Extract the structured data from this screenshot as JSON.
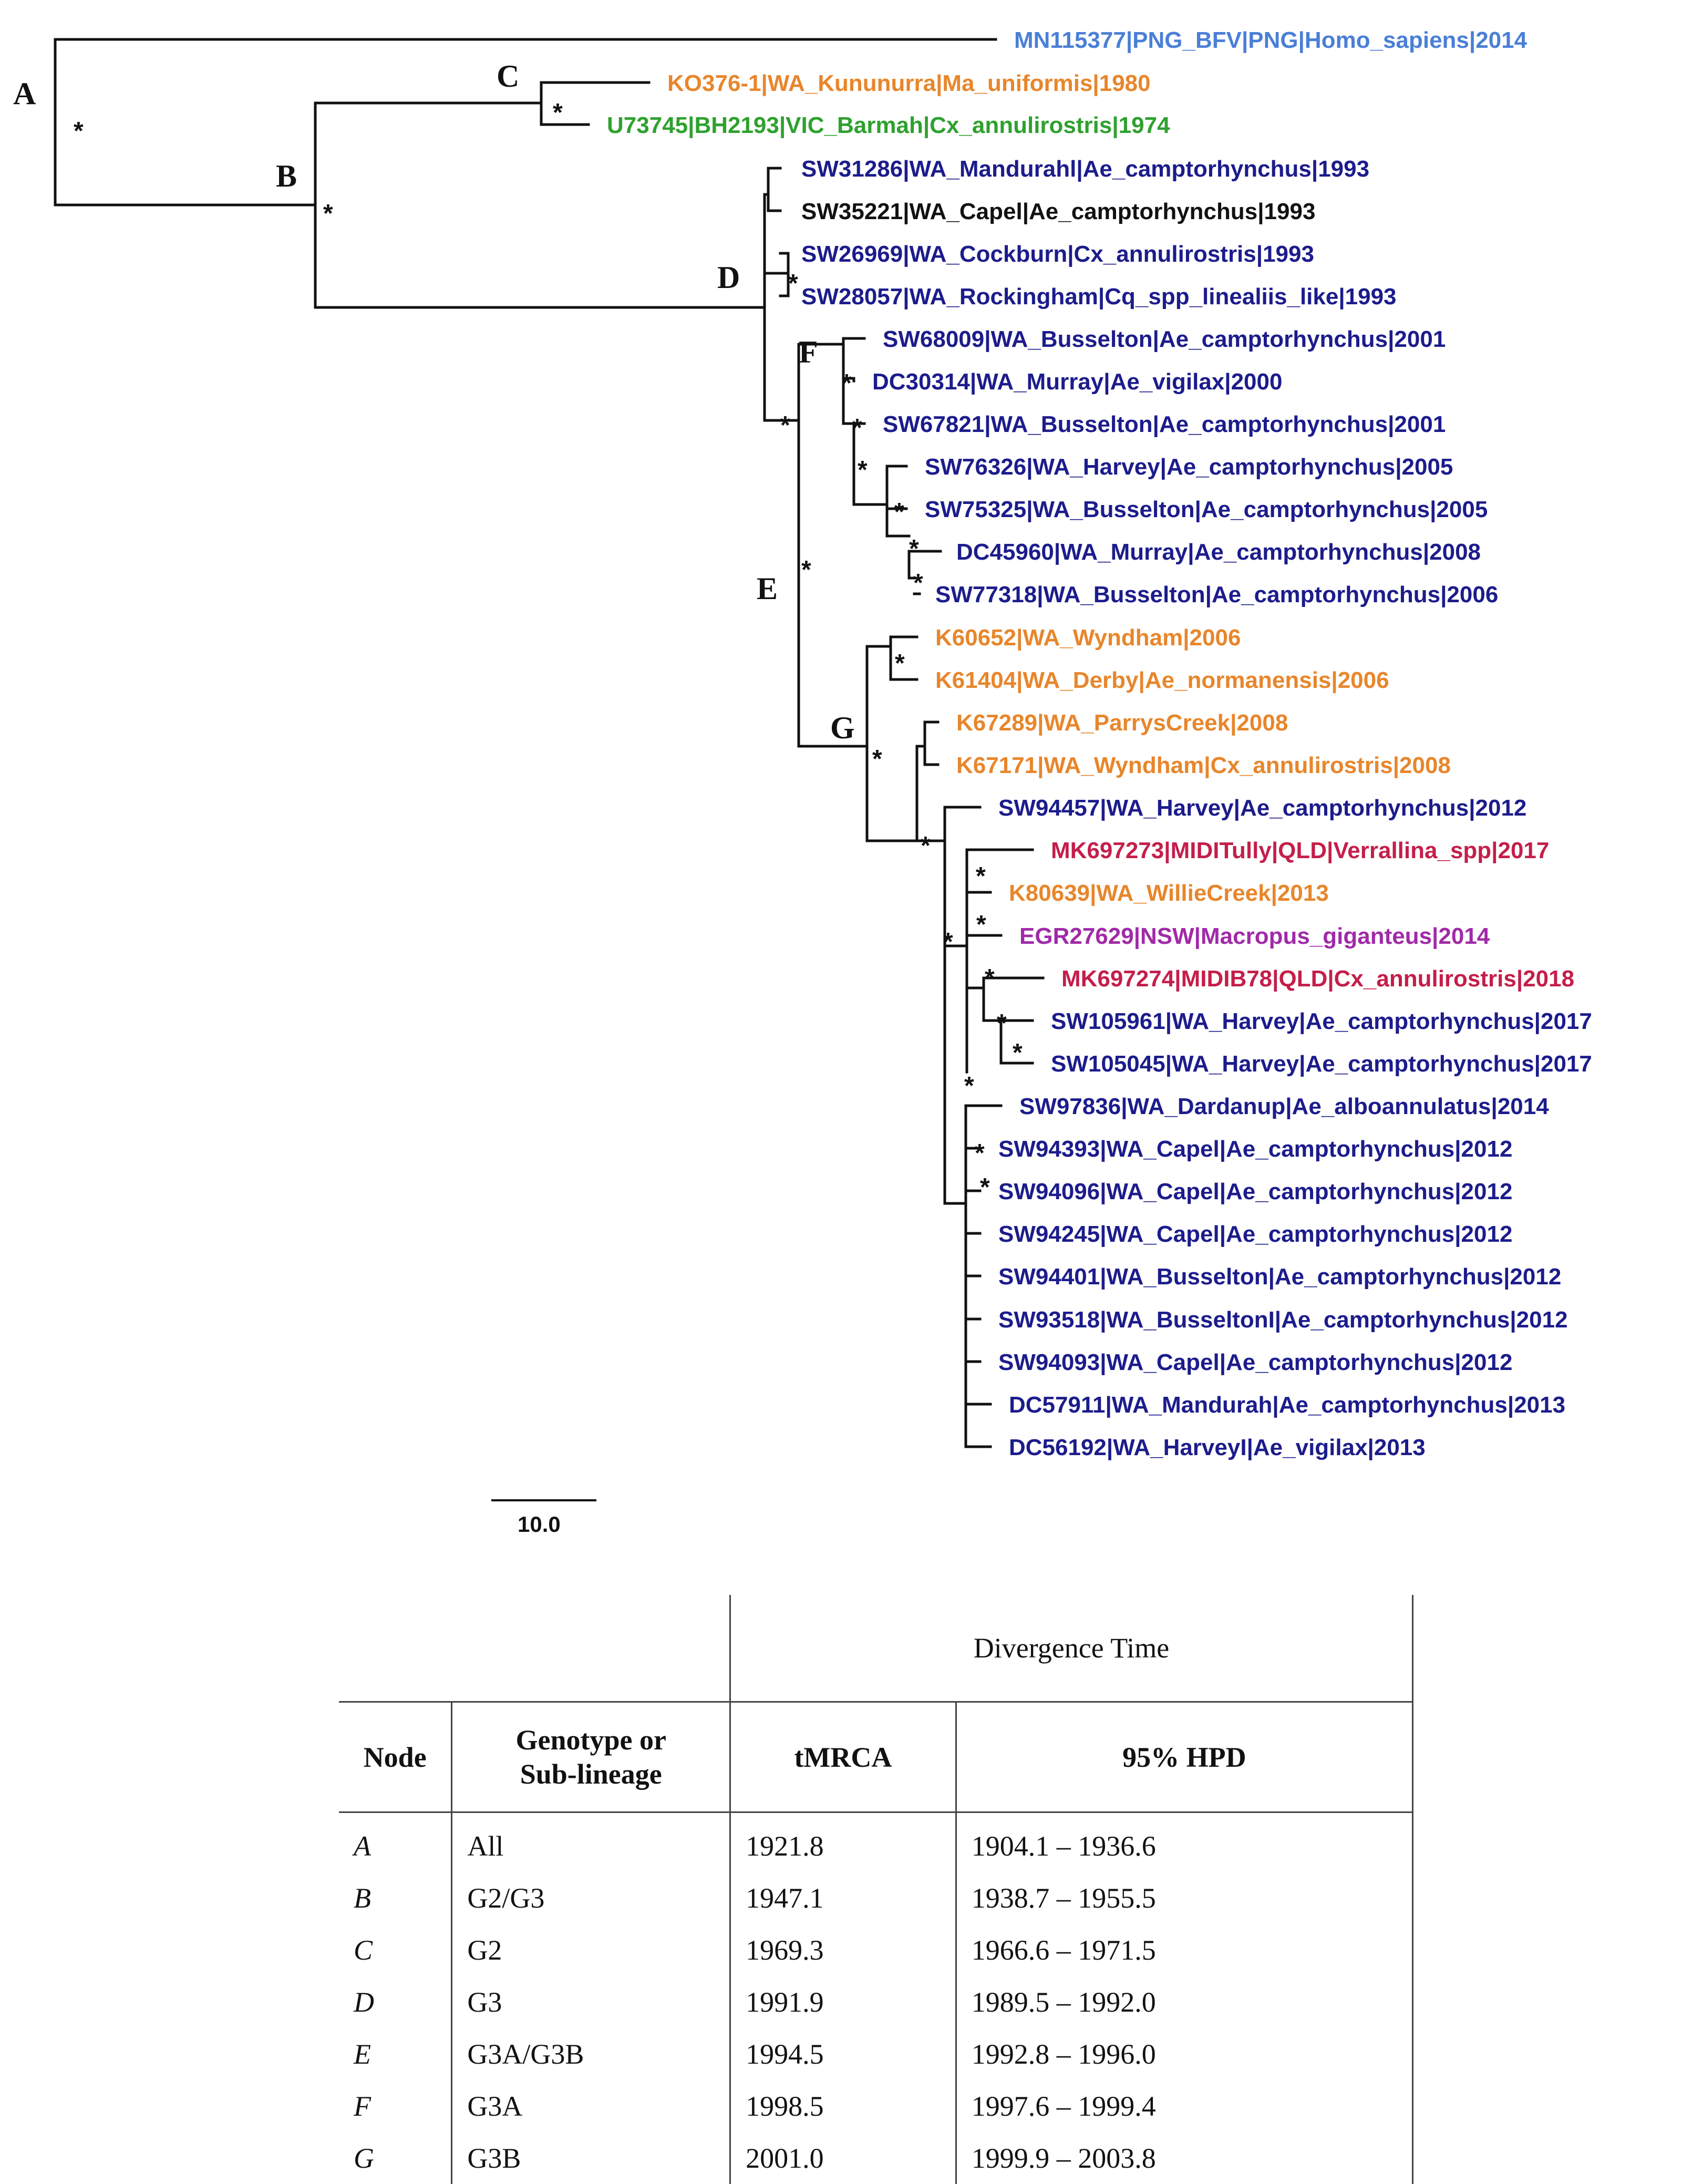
{
  "tree": {
    "leaves": [
      {
        "text": "MN115377|PNG_BFV|PNG|Homo_sapiens|2014",
        "color": "#4a7fd6"
      },
      {
        "text": "KO376-1|WA_Kununurra|Ma_uniformis|1980",
        "color": "#e8862b"
      },
      {
        "text": "U73745|BH2193|VIC_Barmah|Cx_annulirostris|1974",
        "color": "#2ea12e"
      },
      {
        "text": "SW31286|WA_Mandurahl|Ae_camptorhynchus|1993",
        "color": "#1c1c8c"
      },
      {
        "text": "SW35221|WA_Capel|Ae_camptorhynchus|1993",
        "color": "#111111"
      },
      {
        "text": "SW26969|WA_Cockburn|Cx_annulirostris|1993",
        "color": "#1c1c8c"
      },
      {
        "text": "SW28057|WA_Rockingham|Cq_spp_linealiis_like|1993",
        "color": "#1c1c8c"
      },
      {
        "text": "SW68009|WA_Busselton|Ae_camptorhynchus|2001",
        "color": "#1c1c8c"
      },
      {
        "text": "DC30314|WA_Murray|Ae_vigilax|2000",
        "color": "#1c1c8c"
      },
      {
        "text": "SW67821|WA_Busselton|Ae_camptorhynchus|2001",
        "color": "#1c1c8c"
      },
      {
        "text": "SW76326|WA_Harvey|Ae_camptorhynchus|2005",
        "color": "#1c1c8c"
      },
      {
        "text": "SW75325|WA_Busselton|Ae_camptorhynchus|2005",
        "color": "#1c1c8c"
      },
      {
        "text": "DC45960|WA_Murray|Ae_camptorhynchus|2008",
        "color": "#1c1c8c"
      },
      {
        "text": "SW77318|WA_Busselton|Ae_camptorhynchus|2006",
        "color": "#1c1c8c"
      },
      {
        "text": "K60652|WA_Wyndham|2006",
        "color": "#e8862b"
      },
      {
        "text": "K61404|WA_Derby|Ae_normanensis|2006",
        "color": "#e8862b"
      },
      {
        "text": "K67289|WA_ParrysCreek|2008",
        "color": "#e8862b"
      },
      {
        "text": "K67171|WA_Wyndham|Cx_annulirostris|2008",
        "color": "#e8862b"
      },
      {
        "text": "SW94457|WA_Harvey|Ae_camptorhynchus|2012",
        "color": "#1c1c8c"
      },
      {
        "text": "MK697273|MIDITully|QLD|Verrallina_spp|2017",
        "color": "#c41e4a"
      },
      {
        "text": "K80639|WA_WillieCreek|2013",
        "color": "#e8862b"
      },
      {
        "text": "EGR27629|NSW|Macropus_giganteus|2014",
        "color": "#a02aa8"
      },
      {
        "text": "MK697274|MIDIB78|QLD|Cx_annulirostris|2018",
        "color": "#c41e4a"
      },
      {
        "text": "SW105961|WA_Harvey|Ae_camptorhynchus|2017",
        "color": "#1c1c8c"
      },
      {
        "text": "SW105045|WA_Harvey|Ae_camptorhynchus|2017",
        "color": "#1c1c8c"
      },
      {
        "text": "SW97836|WA_Dardanup|Ae_alboannulatus|2014",
        "color": "#1c1c8c"
      },
      {
        "text": "SW94393|WA_Capel|Ae_camptorhynchus|2012",
        "color": "#1c1c8c"
      },
      {
        "text": "SW94096|WA_Capel|Ae_camptorhynchus|2012",
        "color": "#1c1c8c"
      },
      {
        "text": "SW94245|WA_Capel|Ae_camptorhynchus|2012",
        "color": "#1c1c8c"
      },
      {
        "text": "SW94401|WA_Busselton|Ae_camptorhynchus|2012",
        "color": "#1c1c8c"
      },
      {
        "text": "SW93518|WA_BusseltonI|Ae_camptorhynchus|2012",
        "color": "#1c1c8c"
      },
      {
        "text": "SW94093|WA_Capel|Ae_camptorhynchus|2012",
        "color": "#1c1c8c"
      },
      {
        "text": "DC57911|WA_Mandurah|Ae_camptorhynchus|2013",
        "color": "#1c1c8c"
      },
      {
        "text": "DC56192|WA_HarveyI|Ae_vigilax|2013",
        "color": "#1c1c8c"
      }
    ],
    "node_labels": [
      "A",
      "B",
      "C",
      "D",
      "E",
      "F",
      "G"
    ],
    "support_symbol": "*",
    "scale_label": "10.0"
  },
  "table": {
    "group_header": "Divergence Time",
    "headers": {
      "node": "Node",
      "genotype_line1": "Genotype or",
      "genotype_line2": "Sub-lineage",
      "tmrca": "tMRCA",
      "hpd": "95% HPD"
    },
    "rows": [
      {
        "node": "A",
        "genotype": "All",
        "tmrca": "1921.8",
        "hpd": "1904.1 – 1936.6"
      },
      {
        "node": "B",
        "genotype": "G2/G3",
        "tmrca": "1947.1",
        "hpd": "1938.7 – 1955.5"
      },
      {
        "node": "C",
        "genotype": "G2",
        "tmrca": "1969.3",
        "hpd": "1966.6 – 1971.5"
      },
      {
        "node": "D",
        "genotype": "G3",
        "tmrca": "1991.9",
        "hpd": "1989.5 – 1992.0"
      },
      {
        "node": "E",
        "genotype": "G3A/G3B",
        "tmrca": "1994.5",
        "hpd": "1992.8 – 1996.0"
      },
      {
        "node": "F",
        "genotype": "G3A",
        "tmrca": "1998.5",
        "hpd": "1997.6 – 1999.4"
      },
      {
        "node": "G",
        "genotype": "G3B",
        "tmrca": "2001.0",
        "hpd": "1999.9 – 2003.8"
      }
    ]
  }
}
